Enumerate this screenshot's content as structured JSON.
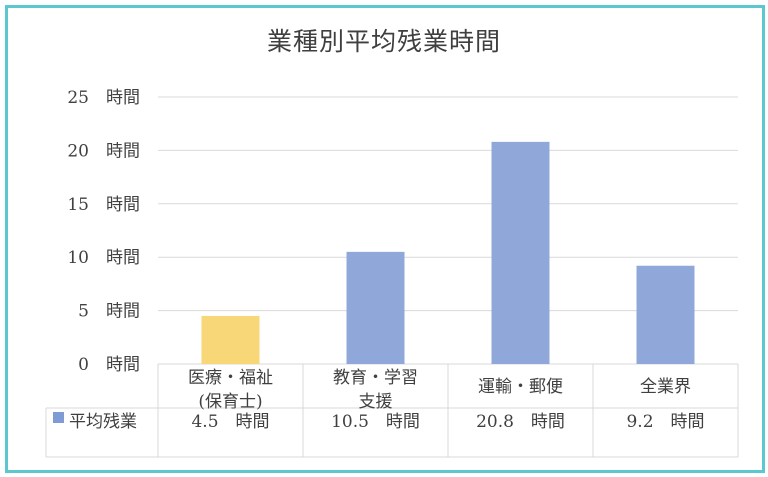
{
  "chart_data": {
    "type": "bar",
    "title": "業種別平均残業時間",
    "categories": [
      [
        "医療・福祉",
        "(保育士)"
      ],
      [
        "教育・学習",
        "支援"
      ],
      [
        "運輸・郵便"
      ],
      [
        "全業界"
      ]
    ],
    "series": [
      {
        "name": "平均残業",
        "values": [
          4.5,
          10.5,
          20.8,
          9.2
        ]
      }
    ],
    "value_labels": [
      "4.5　時間",
      "10.5　時間",
      "20.8　時間",
      "9.2　時間"
    ],
    "y_ticks": [
      "0　時間",
      "5　時間",
      "10　時間",
      "15　時間",
      "20　時間",
      "25　時間"
    ],
    "ylim": [
      0,
      25
    ],
    "bar_colors": [
      "#f7d777",
      "#8fa8d9",
      "#8fa8d9",
      "#8fa8d9"
    ],
    "legend_color": "#7f9bd3",
    "gridlines": true,
    "legend_placement": "data-table"
  }
}
